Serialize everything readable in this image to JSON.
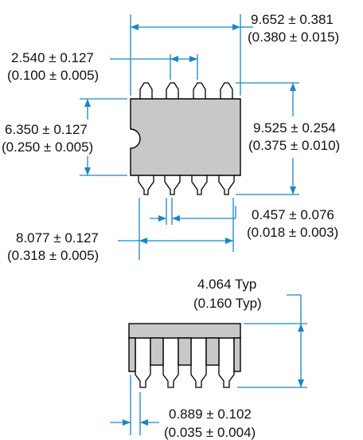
{
  "dims": {
    "body_length": {
      "mm": "9.652 ± 0.381",
      "inch": "(0.380 ± 0.015)"
    },
    "pin_pitch": {
      "mm": "2.540 ± 0.127",
      "inch": "(0.100 ± 0.005)"
    },
    "body_width": {
      "mm": "6.350 ± 0.127",
      "inch": "(0.250 ± 0.005)"
    },
    "overall_width": {
      "mm": "9.525 ± 0.254",
      "inch": "(0.375 ± 0.010)"
    },
    "lead_width": {
      "mm": "0.457 ± 0.076",
      "inch": "(0.018 ± 0.003)"
    },
    "lead_span": {
      "mm": "8.077 ± 0.127",
      "inch": "(0.318 ± 0.005)"
    },
    "height": {
      "mm": "4.064 Typ",
      "inch": "(0.160 Typ)"
    },
    "standoff": {
      "mm": "0.889 ± 0.102",
      "inch": "(0.035 ± 0.004)"
    }
  },
  "colors": {
    "dimension_line": "#1a86c8",
    "package_body": "#c8c8c8",
    "outline": "#000000"
  }
}
